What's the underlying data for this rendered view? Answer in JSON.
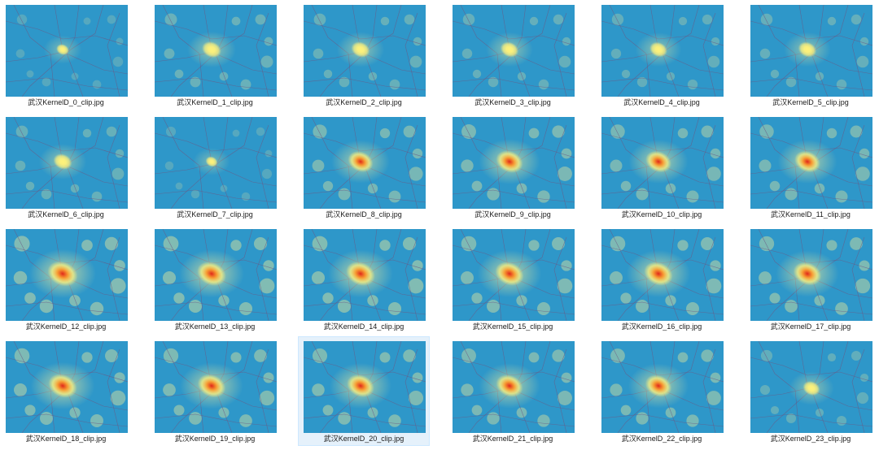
{
  "view": {
    "type": "explorer-large-icons",
    "selected_index": 20
  },
  "files": [
    {
      "name": "武汉KernelD_0_clip.jpg",
      "hour": 0,
      "intensity": 0.15
    },
    {
      "name": "武汉KernelD_1_clip.jpg",
      "hour": 1,
      "intensity": 0.45
    },
    {
      "name": "武汉KernelD_2_clip.jpg",
      "hour": 2,
      "intensity": 0.42
    },
    {
      "name": "武汉KernelD_3_clip.jpg",
      "hour": 3,
      "intensity": 0.4
    },
    {
      "name": "武汉KernelD_4_clip.jpg",
      "hour": 4,
      "intensity": 0.38
    },
    {
      "name": "武汉KernelD_5_clip.jpg",
      "hour": 5,
      "intensity": 0.4
    },
    {
      "name": "武汉KernelD_6_clip.jpg",
      "hour": 6,
      "intensity": 0.42
    },
    {
      "name": "武汉KernelD_7_clip.jpg",
      "hour": 7,
      "intensity": 0.12
    },
    {
      "name": "武汉KernelD_8_clip.jpg",
      "hour": 8,
      "intensity": 0.72
    },
    {
      "name": "武汉KernelD_9_clip.jpg",
      "hour": 9,
      "intensity": 0.8
    },
    {
      "name": "武汉KernelD_10_clip.jpg",
      "hour": 10,
      "intensity": 0.75
    },
    {
      "name": "武汉KernelD_11_clip.jpg",
      "hour": 11,
      "intensity": 0.75
    },
    {
      "name": "武汉KernelD_12_clip.jpg",
      "hour": 12,
      "intensity": 0.95
    },
    {
      "name": "武汉KernelD_13_clip.jpg",
      "hour": 13,
      "intensity": 0.9
    },
    {
      "name": "武汉KernelD_14_clip.jpg",
      "hour": 14,
      "intensity": 0.9
    },
    {
      "name": "武汉KernelD_15_clip.jpg",
      "hour": 15,
      "intensity": 0.88
    },
    {
      "name": "武汉KernelD_16_clip.jpg",
      "hour": 16,
      "intensity": 0.88
    },
    {
      "name": "武汉KernelD_17_clip.jpg",
      "hour": 17,
      "intensity": 0.85
    },
    {
      "name": "武汉KernelD_18_clip.jpg",
      "hour": 18,
      "intensity": 0.88
    },
    {
      "name": "武汉KernelD_19_clip.jpg",
      "hour": 19,
      "intensity": 0.85
    },
    {
      "name": "武汉KernelD_20_clip.jpg",
      "hour": 20,
      "intensity": 0.82
    },
    {
      "name": "武汉KernelD_21_clip.jpg",
      "hour": 21,
      "intensity": 0.8
    },
    {
      "name": "武汉KernelD_22_clip.jpg",
      "hour": 22,
      "intensity": 0.78
    },
    {
      "name": "武汉KernelD_23_clip.jpg",
      "hour": 23,
      "intensity": 0.35
    }
  ],
  "colors": {
    "map_bg": "#2e97c9",
    "map_bg_dark": "#2582b6",
    "road": "#6b5a86",
    "heat_glow": "#e6e89a",
    "heat_yellow": "#fff27a",
    "heat_orange": "#fb9a2e",
    "heat_red": "#e0281a",
    "selected_bg": "#e5f1fb"
  }
}
